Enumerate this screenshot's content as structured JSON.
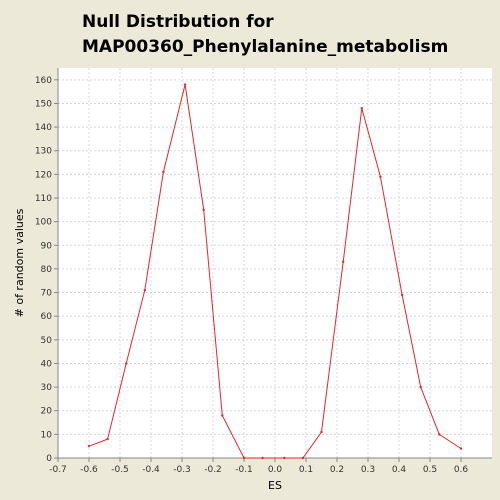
{
  "chart_data": {
    "type": "line",
    "title_lines": [
      "Null Distribution for",
      "MAP00360_Phenylalanine_metabolism"
    ],
    "xlabel": "ES",
    "ylabel": "# of random values",
    "xlim": [
      -0.7,
      0.7
    ],
    "ylim": [
      0,
      165
    ],
    "xticks": [
      -0.7,
      -0.6,
      -0.5,
      -0.4,
      -0.3,
      -0.2,
      -0.1,
      0.0,
      0.1,
      0.2,
      0.3,
      0.4,
      0.5,
      0.6
    ],
    "xtick_labels": [
      "-0.7",
      "-0.6",
      "-0.5",
      "-0.4",
      "-0.3",
      "-0.2",
      "-0.1",
      "0.0",
      "0.1",
      "0.2",
      "0.3",
      "0.4",
      "0.5",
      "0.6"
    ],
    "yticks": [
      0,
      10,
      20,
      30,
      40,
      50,
      60,
      70,
      80,
      90,
      100,
      110,
      120,
      130,
      140,
      150,
      160
    ],
    "grid": true,
    "series": [
      {
        "color": "#e8262a",
        "x": [
          -0.6,
          -0.54,
          -0.48,
          -0.42,
          -0.36,
          -0.29,
          -0.23,
          -0.17,
          -0.1,
          -0.04,
          0.03,
          0.09,
          0.15,
          0.22,
          0.28,
          0.34,
          0.41,
          0.47,
          0.53,
          0.6
        ],
        "y": [
          5,
          8,
          40,
          71,
          121,
          158,
          105,
          18,
          0,
          0,
          0,
          0,
          11,
          83,
          148,
          119,
          69,
          30,
          10,
          4
        ]
      }
    ]
  }
}
